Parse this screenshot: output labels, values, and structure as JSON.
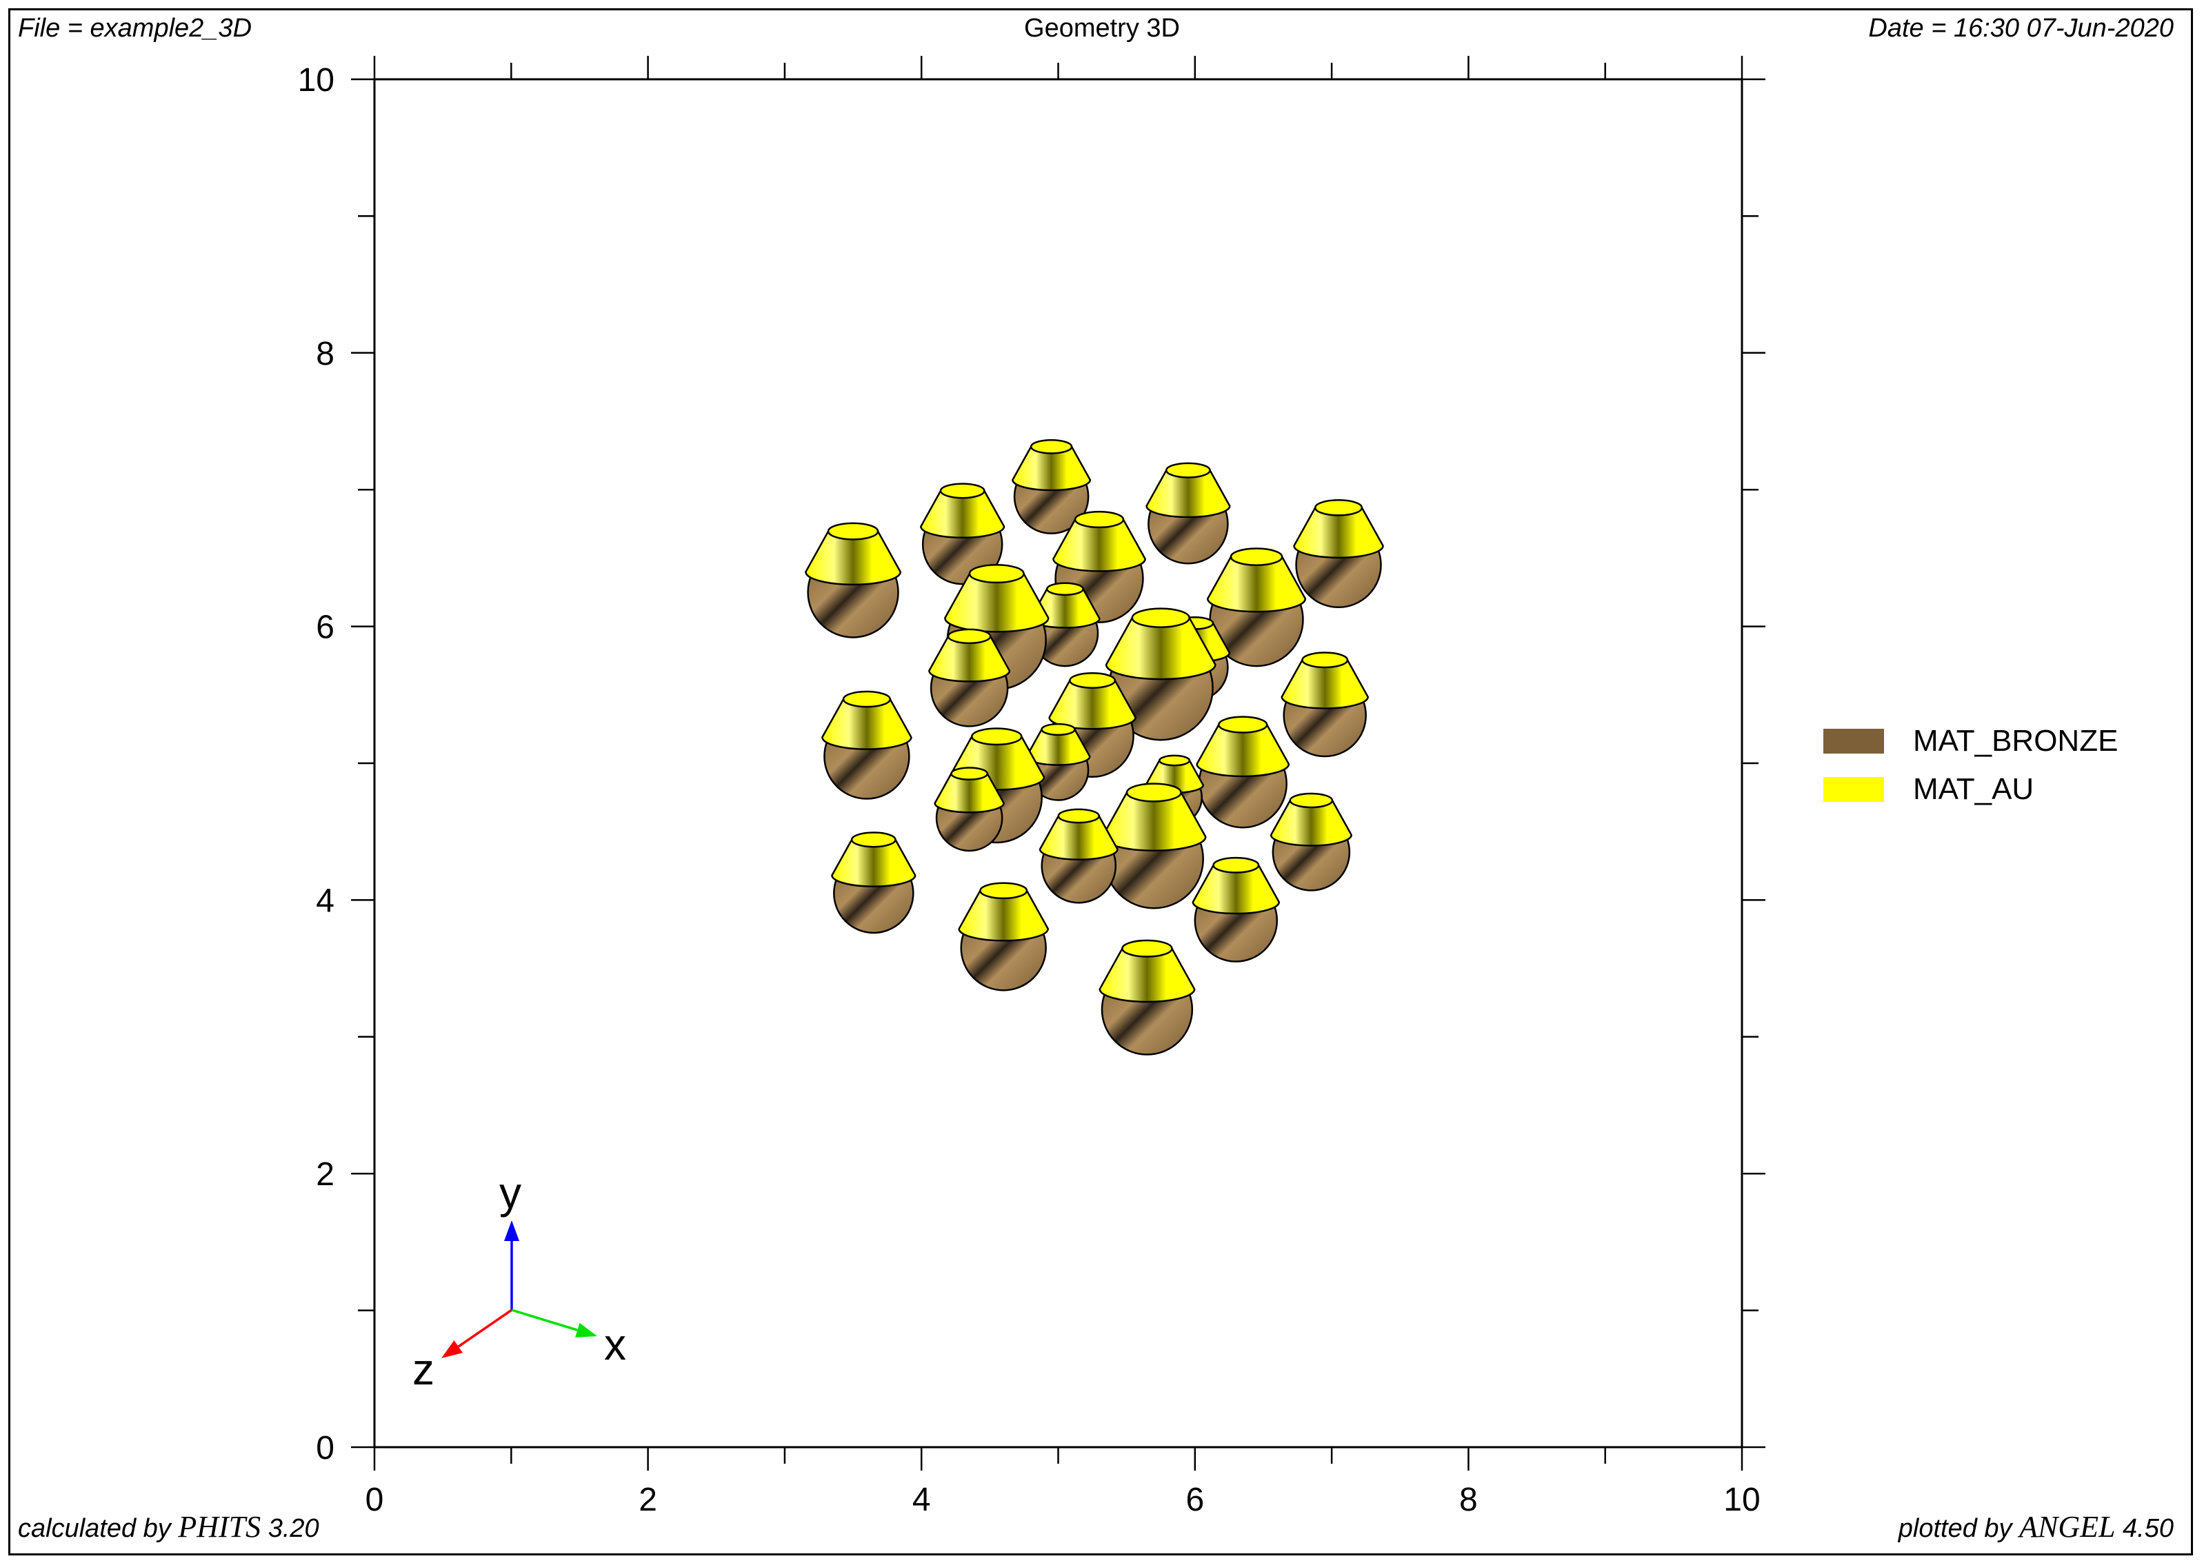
{
  "header": {
    "file": "File = example2_3D",
    "title": "Geometry 3D",
    "date": "Date = 16:30 07-Jun-2020"
  },
  "footer": {
    "calc_prefix": "calculated by ",
    "calc_name": "PHITS",
    "calc_version": " 3.20",
    "plot_prefix": "plotted by ",
    "plot_name": "ANGEL",
    "plot_version": " 4.50"
  },
  "colors": {
    "bronze": "#7d6038",
    "bronze_light": "#b08d5a",
    "bronze_dark": "#2e2418",
    "gold": "#ffff00",
    "gold_light": "#ffff80",
    "gold_dark": "#6b6b00",
    "arrow_x": "#00e000",
    "arrow_y": "#0000ff",
    "arrow_z": "#ff0000"
  },
  "chart_data": {
    "type": "scatter",
    "title": "Geometry 3D",
    "xlim": [
      0,
      10
    ],
    "ylim": [
      0,
      10
    ],
    "xticks": [
      "0",
      "2",
      "4",
      "6",
      "8",
      "10"
    ],
    "yticks": [
      "0",
      "2",
      "4",
      "6",
      "8",
      "10"
    ],
    "orientation_axes": {
      "x": "x",
      "y": "y",
      "z": "z"
    },
    "legend_position": "right",
    "legend": [
      {
        "label": "MAT_BRONZE",
        "color": "#7d6038"
      },
      {
        "label": "MAT_AU",
        "color": "#ffff00"
      }
    ],
    "series": [
      {
        "name": "MAT_BRONZE",
        "note": "spheres, each topped by a gold cone (MAT_AU)",
        "points": [
          {
            "x": 4.95,
            "y": 6.95,
            "r": 0.27
          },
          {
            "x": 4.3,
            "y": 6.6,
            "r": 0.29
          },
          {
            "x": 5.95,
            "y": 6.75,
            "r": 0.29
          },
          {
            "x": 7.05,
            "y": 6.45,
            "r": 0.31
          },
          {
            "x": 3.5,
            "y": 6.25,
            "r": 0.33
          },
          {
            "x": 5.3,
            "y": 6.35,
            "r": 0.32
          },
          {
            "x": 6.45,
            "y": 6.05,
            "r": 0.34
          },
          {
            "x": 5.05,
            "y": 5.95,
            "r": 0.24
          },
          {
            "x": 6.0,
            "y": 5.7,
            "r": 0.24
          },
          {
            "x": 4.35,
            "y": 5.55,
            "r": 0.28
          },
          {
            "x": 4.55,
            "y": 5.9,
            "r": 0.36
          },
          {
            "x": 5.25,
            "y": 5.2,
            "r": 0.3
          },
          {
            "x": 5.75,
            "y": 5.55,
            "r": 0.38
          },
          {
            "x": 6.95,
            "y": 5.35,
            "r": 0.3
          },
          {
            "x": 3.6,
            "y": 5.05,
            "r": 0.31
          },
          {
            "x": 5.0,
            "y": 4.95,
            "r": 0.22
          },
          {
            "x": 5.85,
            "y": 4.75,
            "r": 0.2
          },
          {
            "x": 6.35,
            "y": 4.85,
            "r": 0.32
          },
          {
            "x": 4.35,
            "y": 4.6,
            "r": 0.24
          },
          {
            "x": 4.55,
            "y": 4.75,
            "r": 0.33
          },
          {
            "x": 6.85,
            "y": 4.35,
            "r": 0.28
          },
          {
            "x": 5.15,
            "y": 4.25,
            "r": 0.27
          },
          {
            "x": 5.7,
            "y": 4.3,
            "r": 0.36
          },
          {
            "x": 3.65,
            "y": 4.05,
            "r": 0.29
          },
          {
            "x": 6.3,
            "y": 3.85,
            "r": 0.3
          },
          {
            "x": 4.6,
            "y": 3.65,
            "r": 0.31
          },
          {
            "x": 5.65,
            "y": 3.2,
            "r": 0.33
          }
        ]
      }
    ]
  }
}
